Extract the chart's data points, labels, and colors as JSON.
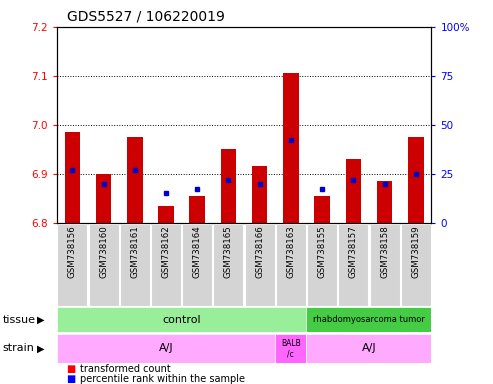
{
  "title": "GDS5527 / 106220019",
  "samples": [
    "GSM738156",
    "GSM738160",
    "GSM738161",
    "GSM738162",
    "GSM738164",
    "GSM738165",
    "GSM738166",
    "GSM738163",
    "GSM738155",
    "GSM738157",
    "GSM738158",
    "GSM738159"
  ],
  "red_values": [
    6.985,
    6.9,
    6.975,
    6.835,
    6.855,
    6.95,
    6.915,
    7.105,
    6.855,
    6.93,
    6.885,
    6.975
  ],
  "blue_percentiles": [
    27,
    20,
    27,
    15,
    17,
    22,
    20,
    42,
    17,
    22,
    20,
    25
  ],
  "ylim_left": [
    6.8,
    7.2
  ],
  "ylim_right": [
    0,
    100
  ],
  "yticks_left": [
    6.8,
    6.9,
    7.0,
    7.1,
    7.2
  ],
  "yticks_right": [
    0,
    25,
    50,
    75,
    100
  ],
  "bar_bottom": 6.8,
  "red_color": "#CC0000",
  "blue_color": "#0000CC",
  "title_fontsize": 10,
  "tick_fontsize": 7.5,
  "control_color": "#99EE99",
  "rhabdo_color": "#44CC44",
  "strain_color": "#FFAAFF",
  "strain_balb_color": "#FF66FF",
  "n_control": 8,
  "n_rhabdo": 4,
  "n_aj_first": 7,
  "n_balb": 1,
  "n_aj_second": 4
}
